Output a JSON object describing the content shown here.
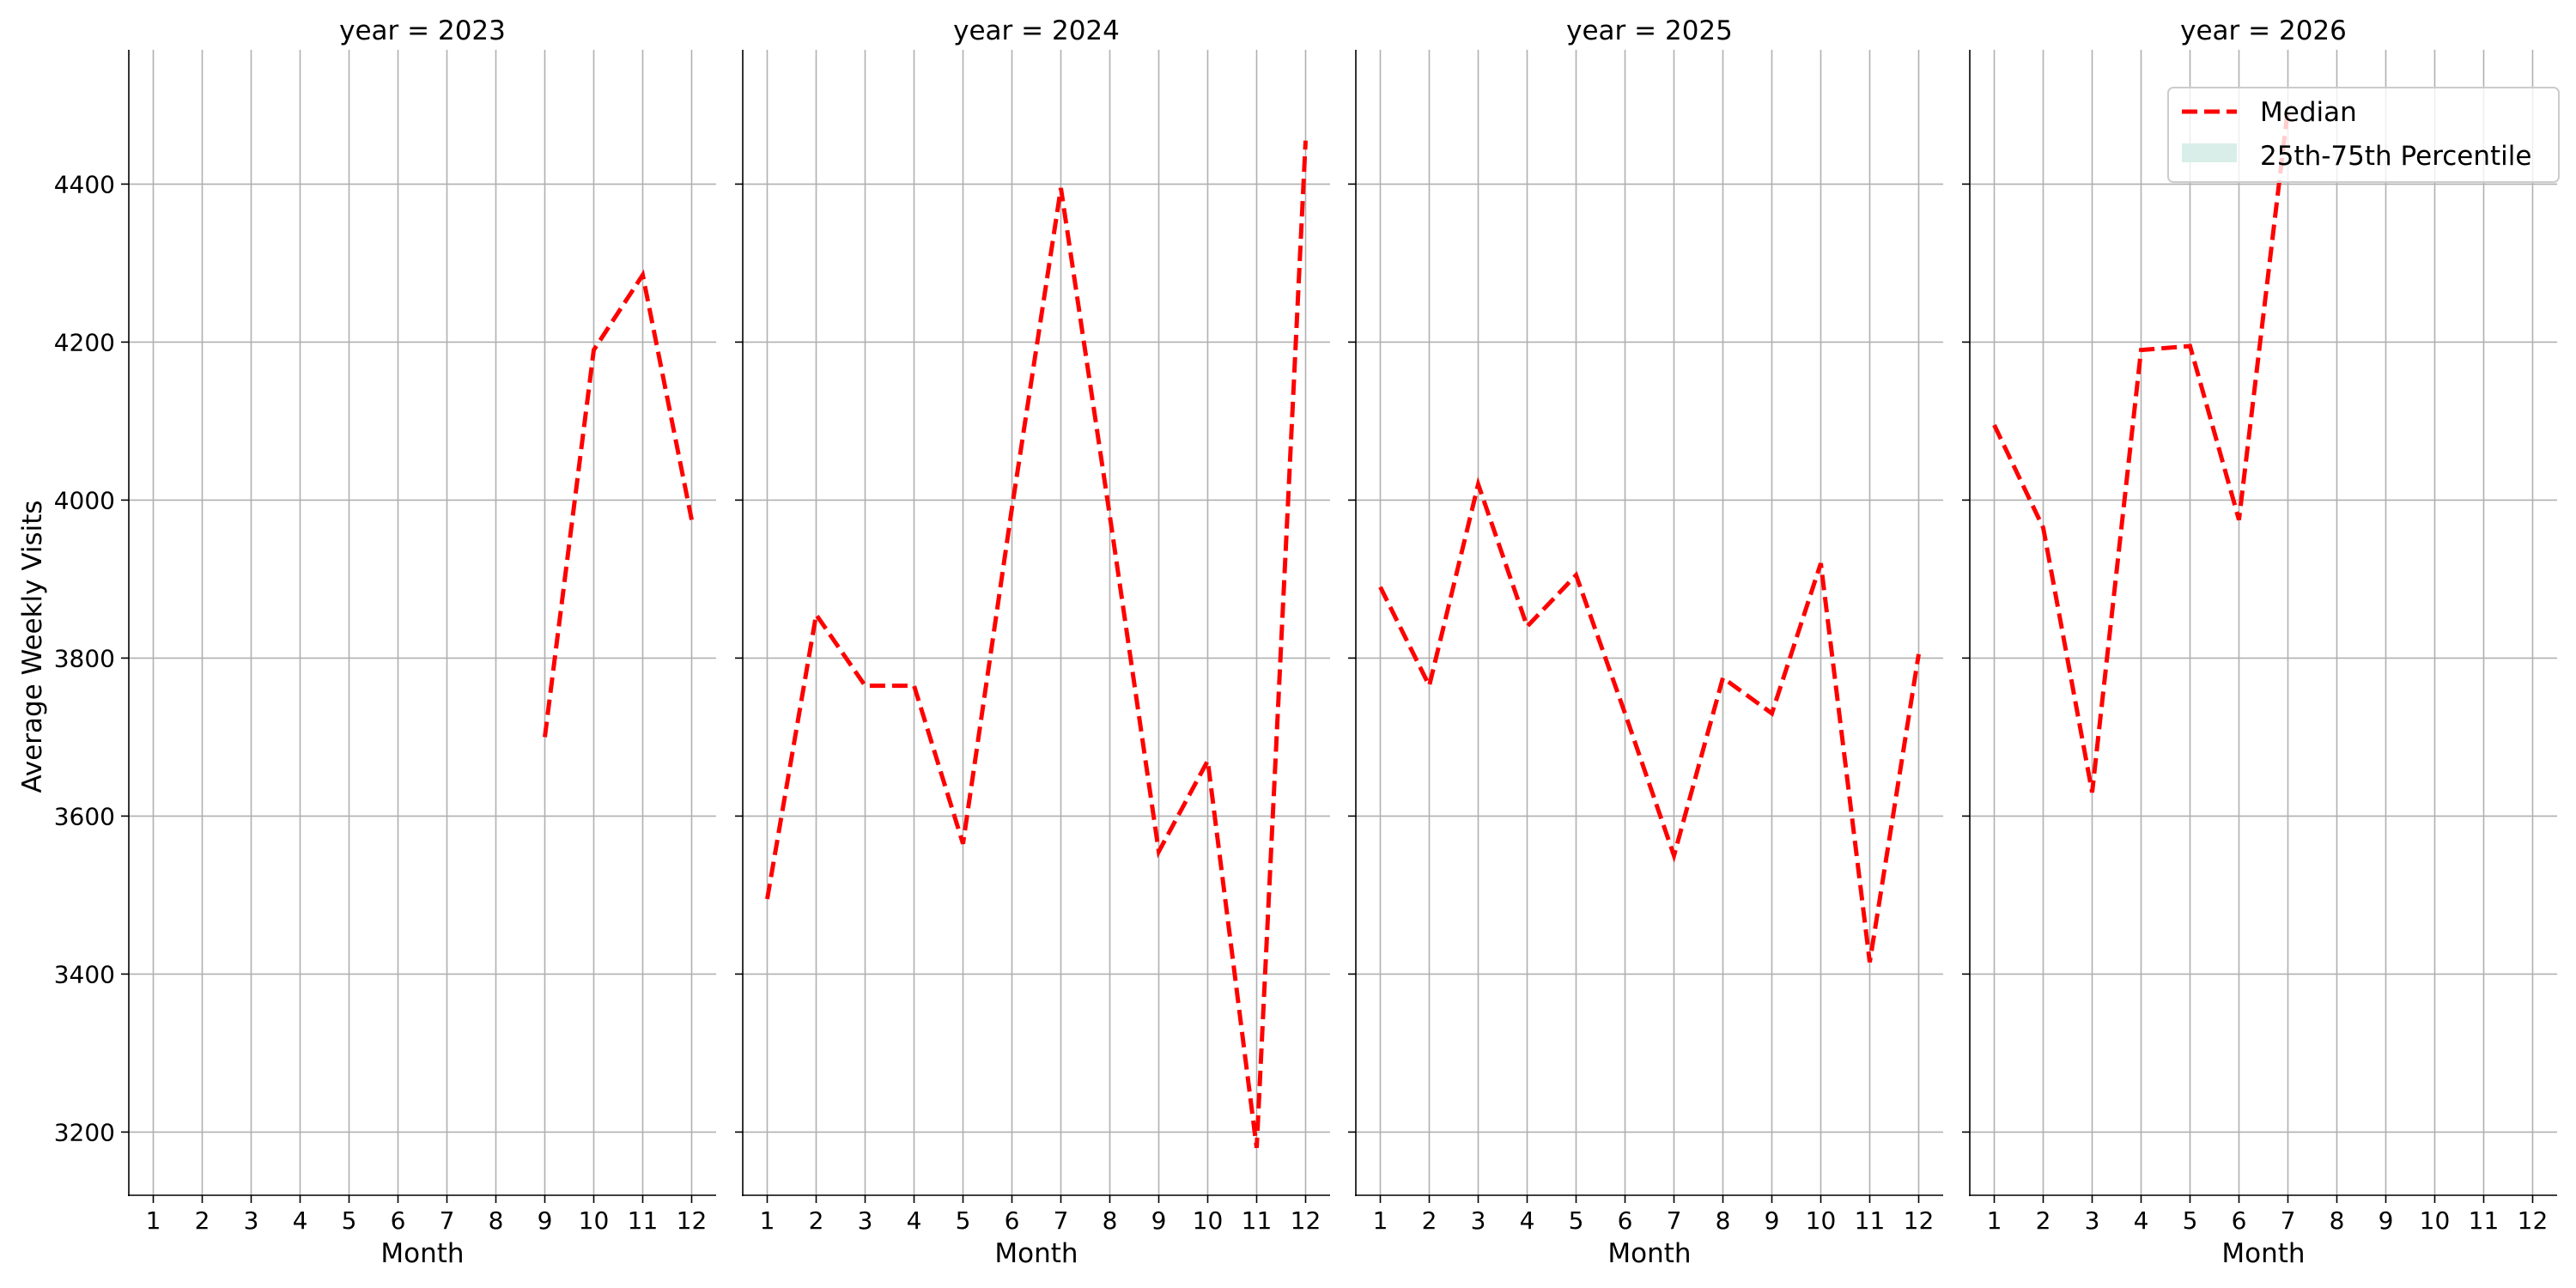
{
  "chart_data": {
    "type": "line",
    "facet_variable": "year",
    "xlabel": "Month",
    "ylabel": "Average Weekly Visits",
    "ylim": [
      3120,
      4570
    ],
    "xlim": [
      0.5,
      12.5
    ],
    "x_ticks": [
      1,
      2,
      3,
      4,
      5,
      6,
      7,
      8,
      9,
      10,
      11,
      12
    ],
    "y_ticks": [
      3200,
      3400,
      3600,
      3800,
      4000,
      4200,
      4400
    ],
    "grid": true,
    "legend": {
      "placement": "top-right",
      "entries": [
        {
          "label": "Median",
          "style": "dashed-line",
          "color": "#ff0000"
        },
        {
          "label": "25th-75th Percentile",
          "style": "band",
          "color": "#d9eee8"
        }
      ]
    },
    "facets": [
      {
        "title": "year = 2023",
        "series": [
          {
            "name": "Median",
            "x": [
              9,
              10,
              11,
              12
            ],
            "y": [
              3700,
              4190,
              4285,
              3975
            ]
          }
        ]
      },
      {
        "title": "year = 2024",
        "series": [
          {
            "name": "Median",
            "x": [
              1,
              2,
              3,
              4,
              5,
              6,
              7,
              8,
              9,
              10,
              11,
              12
            ],
            "y": [
              3495,
              3855,
              3765,
              3765,
              3565,
              3990,
              4395,
              3980,
              3555,
              3670,
              3180,
              4455
            ]
          }
        ]
      },
      {
        "title": "year = 2025",
        "series": [
          {
            "name": "Median",
            "x": [
              1,
              2,
              3,
              4,
              5,
              6,
              7,
              8,
              9,
              10,
              11,
              12
            ],
            "y": [
              3890,
              3765,
              4020,
              3840,
              3905,
              3730,
              3550,
              3775,
              3730,
              3920,
              3415,
              3805
            ]
          }
        ]
      },
      {
        "title": "year = 2026",
        "series": [
          {
            "name": "Median",
            "x": [
              1,
              2,
              3,
              4,
              5,
              6,
              7
            ],
            "y": [
              4095,
              3965,
              3630,
              4190,
              4195,
              3975,
              4495
            ]
          }
        ]
      }
    ]
  }
}
